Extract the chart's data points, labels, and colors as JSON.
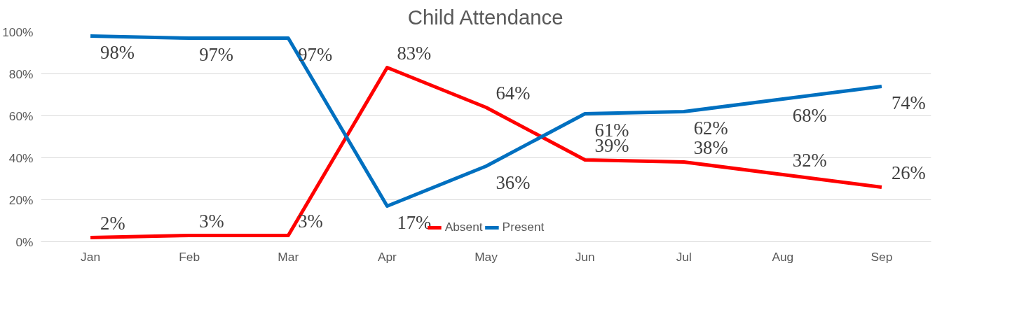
{
  "chart_data": {
    "type": "line",
    "title": "Child Attendance",
    "categories": [
      "Jan",
      "Feb",
      "Mar",
      "Apr",
      "May",
      "Jun",
      "Jul",
      "Aug",
      "Sep"
    ],
    "series": [
      {
        "name": "Absent",
        "color": "#ff0000",
        "values": [
          2,
          3,
          3,
          83,
          64,
          39,
          38,
          32,
          26
        ],
        "value_labels": [
          "2%",
          "3%",
          "3%",
          "83%",
          "64%",
          "39%",
          "38%",
          "32%",
          "26%"
        ]
      },
      {
        "name": "Present",
        "color": "#0070c0",
        "values": [
          98,
          97,
          97,
          17,
          36,
          61,
          62,
          68,
          74
        ],
        "value_labels": [
          "98%",
          "97%",
          "97%",
          "17%",
          "36%",
          "61%",
          "62%",
          "68%",
          "74%"
        ]
      }
    ],
    "ylim": [
      0,
      100
    ],
    "yticks": [
      {
        "value": 0,
        "label": "0%"
      },
      {
        "value": 20,
        "label": "20%"
      },
      {
        "value": 40,
        "label": "40%"
      },
      {
        "value": 60,
        "label": "60%"
      },
      {
        "value": 80,
        "label": "80%"
      },
      {
        "value": 100,
        "label": "100%"
      }
    ],
    "grid": "y",
    "legend": "bottom",
    "marker": "none",
    "line_style": "solid"
  }
}
